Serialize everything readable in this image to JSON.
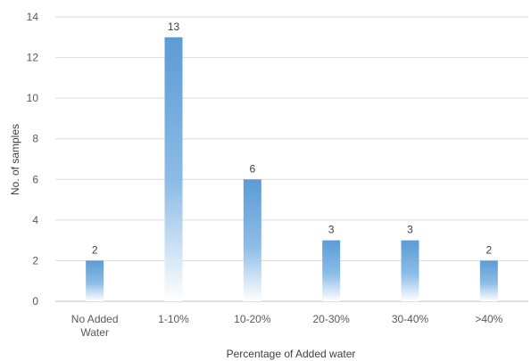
{
  "chart_data": {
    "type": "bar",
    "categories": [
      [
        "No Added",
        "Water"
      ],
      [
        "1-10%"
      ],
      [
        "10-20%"
      ],
      [
        "20-30%"
      ],
      [
        "30-40%"
      ],
      [
        ">40%"
      ]
    ],
    "values": [
      2,
      13,
      6,
      3,
      3,
      2
    ],
    "xlabel": "Percentage of Added water",
    "ylabel": "No. of samples",
    "ylim": [
      0,
      14
    ],
    "yticks": [
      0,
      2,
      4,
      6,
      8,
      10,
      12,
      14
    ],
    "grid": true,
    "legend": "none",
    "bar_color": "#5b9bd5",
    "bar_fill": "gradient fading to white at base"
  }
}
